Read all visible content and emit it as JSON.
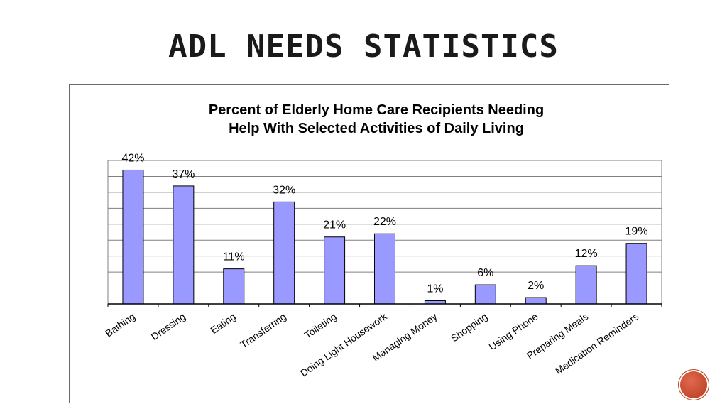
{
  "slide": {
    "title": "ADL NEEDS STATISTICS",
    "accent_color": "#c0431f"
  },
  "chart_data": {
    "type": "bar",
    "title_line1": "Percent of Elderly Home Care Recipients Needing",
    "title_line2": "Help With Selected Activities of Daily Living",
    "categories": [
      "Bathing",
      "Dressing",
      "Eating",
      "Transferring",
      "Toileting",
      "Doing Light Housework",
      "Managing Money",
      "Shopping",
      "Using Phone",
      "Preparing Meals",
      "Medication Reminders"
    ],
    "values": [
      42,
      37,
      11,
      32,
      21,
      22,
      1,
      6,
      2,
      12,
      19
    ],
    "labels": [
      "42%",
      "37%",
      "11%",
      "32%",
      "21%",
      "22%",
      "1%",
      "6%",
      "2%",
      "12%",
      "19%"
    ],
    "ylim": [
      0,
      45
    ],
    "grid_step": 5,
    "grid": true,
    "bar_color": "#9999ff",
    "xlabel": "",
    "ylabel": ""
  }
}
